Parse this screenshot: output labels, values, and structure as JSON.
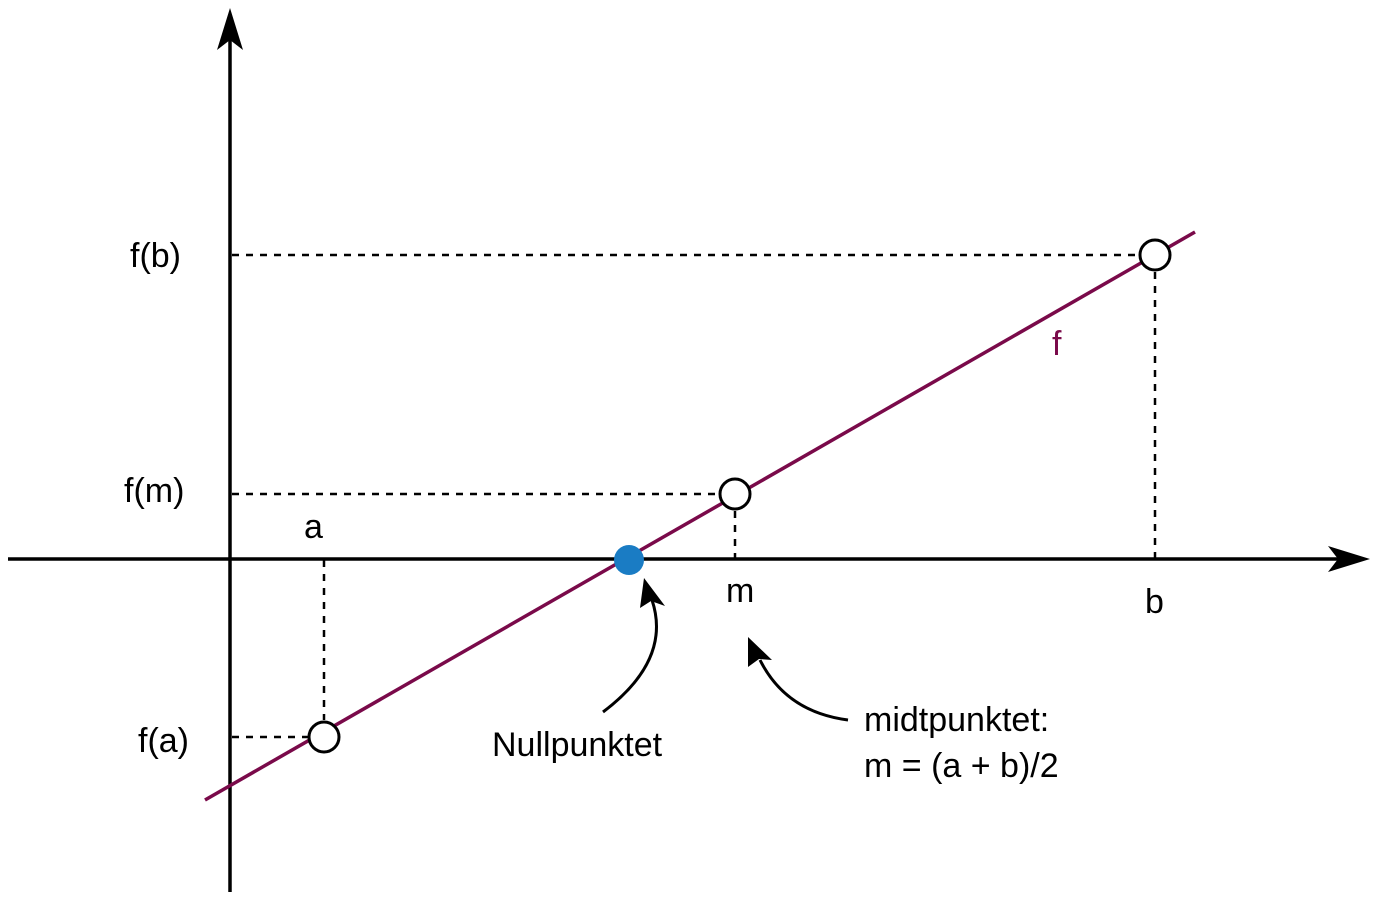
{
  "diagram": {
    "labels": {
      "f_b": "f(b)",
      "f_m": "f(m)",
      "f_a": "f(a)",
      "a": "a",
      "m": "m",
      "b": "b",
      "f": "f",
      "zero_point": "Nullpunktet",
      "midpoint_line1": "midtpunktet:",
      "midpoint_line2": "m = (a + b)/2"
    },
    "colors": {
      "function_line": "#7a0a4a",
      "zero_point": "#1a7cc4",
      "axis": "#000000",
      "open_point_fill": "#ffffff"
    }
  }
}
